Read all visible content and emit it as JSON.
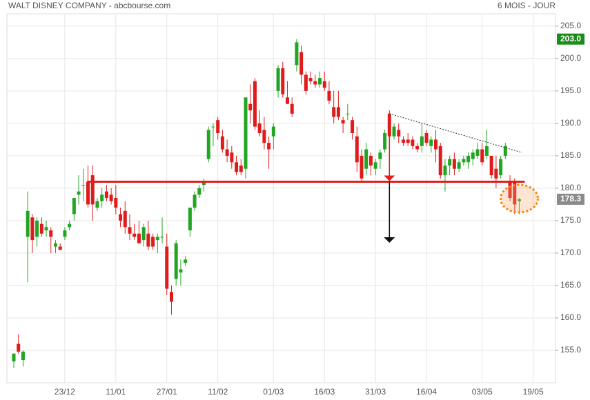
{
  "chart_data": {
    "type": "candlestick",
    "title": "WALT DISNEY COMPANY - abcbourse.com",
    "subtitle": "6 MOIS - JOUR",
    "up_color": "#22a522",
    "down_color": "#e01b1b",
    "grid": true,
    "ylim": [
      150,
      206.9
    ],
    "yticks": [
      {
        "value": 155,
        "label": "155.0"
      },
      {
        "value": 160,
        "label": "160.0"
      },
      {
        "value": 165,
        "label": "165.0"
      },
      {
        "value": 170,
        "label": "170.0"
      },
      {
        "value": 175,
        "label": "175.0"
      },
      {
        "value": 180,
        "label": "180.0"
      },
      {
        "value": 185,
        "label": "185.0"
      },
      {
        "value": 190,
        "label": "190.0"
      },
      {
        "value": 195,
        "label": "195.0"
      },
      {
        "value": 200,
        "label": "200.0"
      },
      {
        "value": 205,
        "label": "205.0"
      }
    ],
    "price_labels": [
      {
        "value": 203,
        "label": "203.0",
        "color": "#1a8c1a"
      },
      {
        "value": 178.3,
        "label": "178.3",
        "color": "#8a8a8a"
      }
    ],
    "support": 181,
    "trendline": [
      191.5,
      185.5
    ],
    "target": 171.8,
    "categories": [
      null,
      null,
      null,
      null,
      null,
      null,
      null,
      null,
      null,
      null,
      null,
      "23/12",
      null,
      null,
      null,
      null,
      null,
      null,
      null,
      null,
      null,
      null,
      "11/01",
      null,
      null,
      null,
      null,
      null,
      null,
      null,
      null,
      null,
      null,
      "27/01",
      null,
      null,
      null,
      null,
      null,
      null,
      null,
      null,
      null,
      null,
      "11/02",
      null,
      null,
      null,
      null,
      null,
      null,
      null,
      null,
      null,
      null,
      null,
      "01/03",
      null,
      null,
      null,
      null,
      null,
      null,
      null,
      null,
      null,
      null,
      "16/03",
      null,
      null,
      null,
      null,
      null,
      null,
      null,
      null,
      null,
      null,
      "31/03",
      null,
      null,
      null,
      null,
      null,
      null,
      null,
      null,
      null,
      null,
      "16/04",
      null,
      null,
      null,
      null,
      null,
      null,
      null,
      null,
      null,
      null,
      null,
      "03/05",
      null,
      null,
      null,
      null,
      null,
      null,
      null,
      null,
      null,
      null,
      "19/05",
      null,
      null,
      null
    ],
    "ohlc": [
      [
        153.3,
        154.5,
        152.3,
        154.5
      ],
      [
        156,
        157.5,
        154.5,
        154.8
      ],
      [
        153.5,
        155,
        152.5,
        154.8
      ],
      [
        172.5,
        179.5,
        165.5,
        176.5
      ],
      [
        175.5,
        176,
        170,
        172
      ],
      [
        172.5,
        175.5,
        171,
        175
      ],
      [
        174.5,
        175.5,
        172.5,
        173
      ],
      [
        173.5,
        175,
        172.5,
        174
      ],
      [
        173.5,
        174,
        170,
        172.5
      ],
      [
        171,
        172,
        170,
        171.5
      ],
      [
        171,
        171.5,
        170.5,
        170.5
      ],
      [
        172.5,
        174,
        172,
        173.5
      ],
      [
        174,
        175,
        173.5,
        174.5
      ],
      [
        176,
        178.5,
        175,
        178.5
      ],
      [
        179,
        182,
        177.5,
        179.5
      ],
      [
        180.5,
        183,
        178,
        180.5
      ],
      [
        181,
        183.5,
        177,
        177.5
      ],
      [
        182,
        183.5,
        175,
        177.5
      ],
      [
        177,
        178.5,
        176.5,
        178
      ],
      [
        178,
        180,
        177,
        179
      ],
      [
        179.5,
        180.5,
        178,
        178.5
      ],
      [
        179,
        180,
        177.5,
        178
      ],
      [
        178.5,
        180.5,
        176,
        177
      ],
      [
        176,
        177,
        174,
        175
      ],
      [
        176.5,
        178,
        173,
        174
      ],
      [
        174,
        176,
        172,
        173
      ],
      [
        173,
        174.5,
        172,
        172.5
      ],
      [
        173,
        175,
        171.5,
        171.5
      ],
      [
        172,
        174.5,
        171,
        174
      ],
      [
        173,
        175,
        170.5,
        171
      ],
      [
        172.5,
        173,
        170.5,
        171
      ],
      [
        172,
        173,
        170,
        172.5
      ],
      [
        172.5,
        175.5,
        171.5,
        172.5
      ],
      [
        171,
        173,
        163.5,
        164.5
      ],
      [
        164,
        165,
        160.5,
        162.5
      ],
      [
        166,
        172,
        165,
        171.5
      ],
      [
        167,
        169,
        165,
        167.5
      ],
      [
        168.5,
        169.5,
        168,
        169
      ],
      [
        173.5,
        176.5,
        172.5,
        177
      ],
      [
        177,
        179.5,
        176.5,
        179
      ],
      [
        179,
        180.5,
        178.5,
        180
      ],
      [
        180.5,
        181.5,
        179.5,
        181
      ],
      [
        184.5,
        189.5,
        184,
        189
      ],
      [
        189.5,
        190,
        186.5,
        189.5
      ],
      [
        190.5,
        191,
        187.5,
        188.5
      ],
      [
        188,
        189,
        185.5,
        186
      ],
      [
        186,
        187.5,
        184,
        185
      ],
      [
        185.5,
        186.5,
        183,
        184
      ],
      [
        184,
        185,
        182,
        182.5
      ],
      [
        183.5,
        184.5,
        182,
        182.5
      ],
      [
        183,
        194,
        181.5,
        194
      ],
      [
        193,
        196,
        190,
        192
      ],
      [
        196.5,
        197,
        189,
        189.5
      ],
      [
        190,
        192,
        188,
        188.5
      ],
      [
        189,
        191,
        186,
        187
      ],
      [
        187,
        188,
        183,
        186
      ],
      [
        188,
        190,
        186,
        189.5
      ],
      [
        195,
        199,
        194,
        198.5
      ],
      [
        198.5,
        199.5,
        194,
        194.5
      ],
      [
        194,
        196.5,
        193,
        193
      ],
      [
        193,
        194,
        191,
        191.5
      ],
      [
        199,
        203,
        198,
        202.5
      ],
      [
        201,
        202,
        196,
        197.5
      ],
      [
        197.5,
        198,
        194.5,
        195
      ],
      [
        197,
        198,
        196,
        196.5
      ],
      [
        196.5,
        197.5,
        195.5,
        196
      ],
      [
        196,
        198,
        195.5,
        197
      ],
      [
        196.5,
        198,
        195,
        195.5
      ],
      [
        195,
        196.5,
        193,
        193.5
      ],
      [
        192.5,
        195,
        190,
        191
      ],
      [
        192.5,
        195,
        190.5,
        191
      ],
      [
        190.5,
        191,
        188.5,
        190
      ],
      [
        191.5,
        193,
        190.5,
        191.5
      ],
      [
        190.5,
        191,
        187.5,
        188.5
      ],
      [
        188,
        189.5,
        182.5,
        184
      ],
      [
        185,
        186,
        181,
        181.5
      ],
      [
        183,
        187,
        182,
        186
      ],
      [
        185,
        185.5,
        182,
        183.5
      ],
      [
        183,
        184.5,
        182,
        184
      ],
      [
        184.5,
        186,
        183,
        185.5
      ],
      [
        186,
        189,
        185.5,
        188.5
      ],
      [
        191.5,
        192,
        186,
        188
      ],
      [
        188,
        190,
        187.5,
        189.5
      ],
      [
        189,
        190,
        187,
        188
      ],
      [
        187.5,
        188,
        186.5,
        187
      ],
      [
        187.5,
        188.5,
        186.5,
        187
      ],
      [
        187.5,
        188,
        186,
        186.5
      ],
      [
        186.5,
        187,
        185.5,
        186
      ],
      [
        186.5,
        190,
        185.5,
        188
      ],
      [
        188.5,
        189,
        186.5,
        187
      ],
      [
        186.5,
        188,
        185.5,
        187.5
      ],
      [
        187.5,
        189,
        184,
        186
      ],
      [
        186.5,
        187,
        181.5,
        182
      ],
      [
        182,
        184.5,
        179.5,
        183.5
      ],
      [
        183.5,
        185,
        182,
        184.5
      ],
      [
        184.5,
        185.5,
        182,
        183
      ],
      [
        183,
        184.5,
        182.5,
        184
      ],
      [
        184,
        185,
        183.5,
        184.5
      ],
      [
        184,
        185.5,
        183,
        185
      ],
      [
        184.5,
        186,
        183.5,
        185.5
      ],
      [
        185,
        187,
        184.5,
        186
      ],
      [
        186,
        187,
        183.5,
        184
      ],
      [
        185,
        189,
        184.5,
        186.5
      ],
      [
        185,
        185,
        181.5,
        182
      ],
      [
        183,
        185,
        180,
        181.5
      ],
      [
        182,
        185,
        181.5,
        184.5
      ],
      [
        185,
        187,
        184.5,
        186.5
      ],
      [
        181,
        182,
        178,
        178.5
      ],
      [
        181,
        181.5,
        176,
        177.5
      ],
      [
        178,
        178.5,
        176,
        178.3
      ],
      null,
      null,
      null,
      null,
      null,
      null
    ]
  }
}
